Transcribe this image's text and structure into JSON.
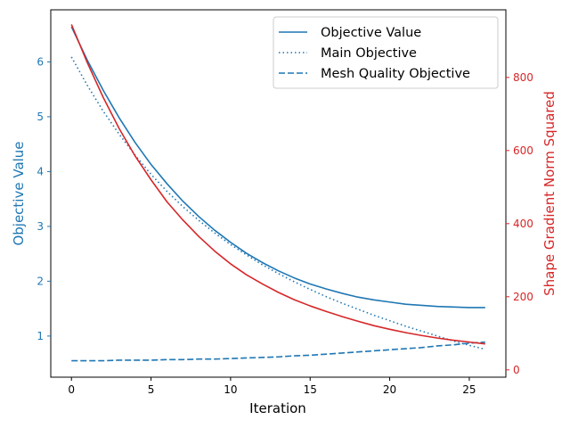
{
  "chart_data": {
    "type": "line",
    "xlabel": "Iteration",
    "ylabel_left": "Objective Value",
    "ylabel_right": "Shape Gradient Norm Squared",
    "legend_position": "top-right",
    "grid": false,
    "xlim": [
      -1.3,
      27.3
    ],
    "ylim_left": [
      0.25,
      6.95
    ],
    "ylim_right": [
      -20,
      985
    ],
    "x_ticks": [
      0,
      5,
      10,
      15,
      20,
      25
    ],
    "y_ticks_left": [
      1,
      2,
      3,
      4,
      5,
      6
    ],
    "y_ticks_right": [
      0,
      200,
      400,
      600,
      800
    ],
    "x": [
      0,
      1,
      2,
      3,
      4,
      5,
      6,
      7,
      8,
      9,
      10,
      11,
      12,
      13,
      14,
      15,
      16,
      17,
      18,
      19,
      20,
      21,
      22,
      23,
      24,
      25,
      26
    ],
    "left_axis_color": "#1f77b4",
    "right_axis_color": "#d62728",
    "series": [
      {
        "name": "Objective Value",
        "axis": "left",
        "style": "solid",
        "color": "#1f77b4",
        "values": [
          6.64,
          6.03,
          5.48,
          4.98,
          4.53,
          4.13,
          3.78,
          3.46,
          3.18,
          2.93,
          2.71,
          2.51,
          2.34,
          2.19,
          2.06,
          1.95,
          1.86,
          1.78,
          1.71,
          1.66,
          1.62,
          1.58,
          1.56,
          1.54,
          1.53,
          1.52,
          1.52
        ]
      },
      {
        "name": "Main Objective",
        "axis": "left",
        "style": "dotted",
        "color": "#1f77b4",
        "values": [
          6.09,
          5.57,
          5.1,
          4.68,
          4.3,
          3.95,
          3.64,
          3.36,
          3.11,
          2.88,
          2.67,
          2.48,
          2.3,
          2.14,
          1.99,
          1.85,
          1.72,
          1.6,
          1.49,
          1.38,
          1.28,
          1.18,
          1.09,
          1.0,
          0.91,
          0.83,
          0.76
        ]
      },
      {
        "name": "Mesh Quality Objective",
        "axis": "left",
        "style": "dashed",
        "color": "#1f77b4",
        "values": [
          0.55,
          0.55,
          0.55,
          0.56,
          0.56,
          0.56,
          0.57,
          0.57,
          0.58,
          0.58,
          0.59,
          0.6,
          0.61,
          0.62,
          0.64,
          0.65,
          0.67,
          0.69,
          0.71,
          0.73,
          0.75,
          0.77,
          0.79,
          0.82,
          0.84,
          0.87,
          0.89
        ]
      },
      {
        "name": "",
        "axis": "right",
        "style": "solid",
        "color": "#d62728",
        "values": [
          945,
          840,
          745,
          660,
          585,
          520,
          460,
          410,
          365,
          325,
          290,
          260,
          235,
          212,
          192,
          175,
          160,
          146,
          133,
          121,
          111,
          102,
          94,
          87,
          81,
          76,
          71
        ]
      }
    ]
  }
}
